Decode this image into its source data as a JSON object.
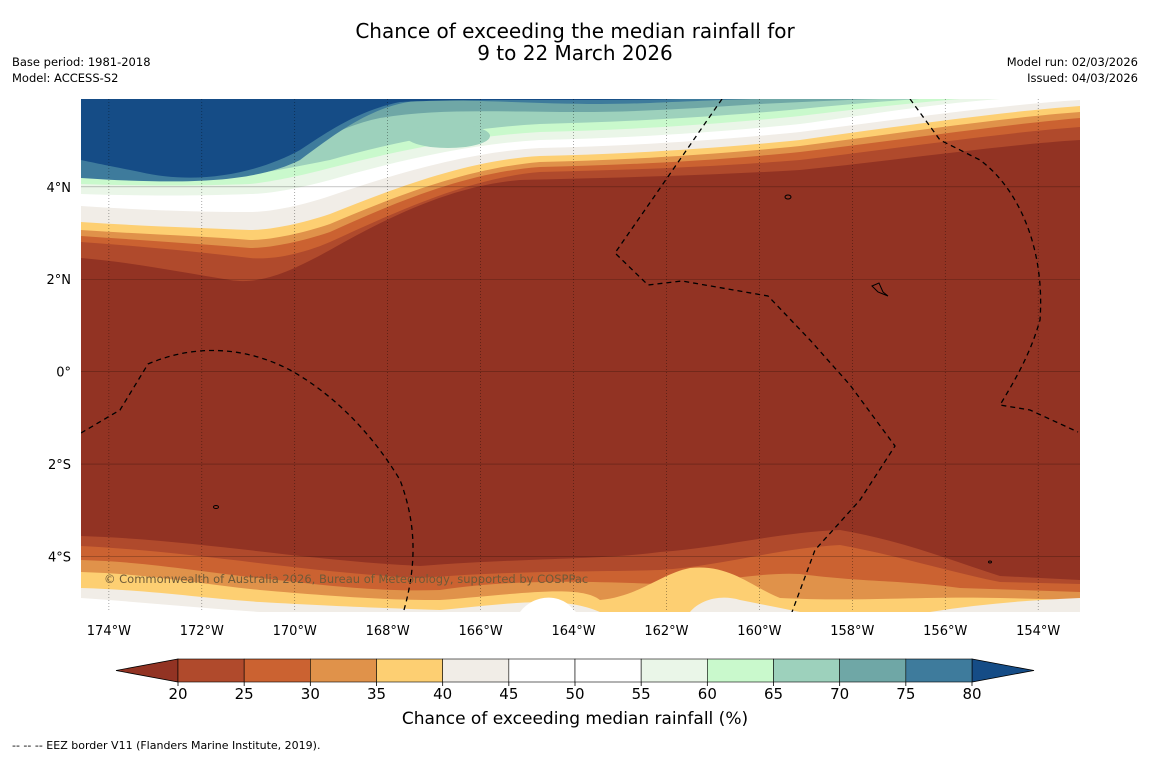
{
  "header": {
    "title_line1": "Chance of exceeding the median rainfall for",
    "title_line2": "9 to 22 March 2026",
    "base_period": "Base period: 1981-2018",
    "model": "Model: ACCESS-S2",
    "model_run": "Model run: 02/03/2026",
    "issued": "Issued: 04/03/2026"
  },
  "map": {
    "lon_labels": [
      "174°W",
      "172°W",
      "170°W",
      "168°W",
      "166°W",
      "164°W",
      "162°W",
      "160°W",
      "158°W",
      "156°W",
      "154°W"
    ],
    "lat_labels": [
      "4°N",
      "2°N",
      "0°",
      "2°S",
      "4°S"
    ],
    "lon_values": [
      -174,
      -172,
      -170,
      -168,
      -166,
      -164,
      -162,
      -160,
      -158,
      -156,
      -154
    ],
    "lat_values": [
      4,
      2,
      0,
      -2,
      -4
    ],
    "lon_range": [
      -174.6,
      -153.1
    ],
    "lat_range": [
      -5.2,
      5.9
    ],
    "copyright": "© Commonwealth of Australia 2026, Bureau of Meteorology, supported by COSPPac"
  },
  "colorbar": {
    "title": "Chance of exceeding median rainfall (%)",
    "ticks": [
      "20",
      "25",
      "30",
      "35",
      "40",
      "45",
      "50",
      "55",
      "60",
      "65",
      "70",
      "75",
      "80"
    ],
    "colors": [
      "#b04a2c",
      "#cb6231",
      "#e0924a",
      "#fdcf72",
      "#f1ede7",
      "#ffffff",
      "#ffffff",
      "#eaf6e8",
      "#c9f9cc",
      "#9dd1bc",
      "#6fa7a6",
      "#3e7b9c"
    ],
    "under_color": "#923323",
    "over_color": "#154c86"
  },
  "footer": {
    "legend": "-- -- -- EEZ border V11 (Flanders Marine Institute, 2019)."
  }
}
